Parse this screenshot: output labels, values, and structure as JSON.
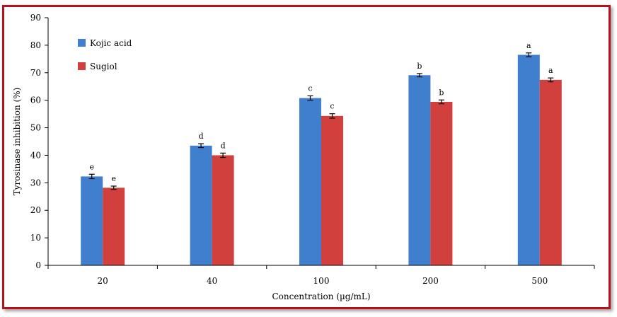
{
  "chart_data": {
    "type": "bar",
    "title": "",
    "xlabel": "Concentration (µg/mL)",
    "ylabel": "Tyrosinase inhibition (%)",
    "ylim": [
      0,
      90
    ],
    "yticks": [
      0,
      10,
      20,
      30,
      40,
      50,
      60,
      70,
      80,
      90
    ],
    "categories": [
      "20",
      "40",
      "100",
      "200",
      "500"
    ],
    "legend_position": "top-left",
    "grid": false,
    "series": [
      {
        "name": "Kojic acid",
        "color": "#3f7fce",
        "values": [
          32.3,
          43.5,
          60.8,
          69.1,
          76.5
        ],
        "errors": [
          0.8,
          0.7,
          0.8,
          0.6,
          0.7
        ],
        "labels": [
          "e",
          "d",
          "c",
          "b",
          "a"
        ]
      },
      {
        "name": "Sugiol",
        "color": "#d1403c",
        "values": [
          28.2,
          40.0,
          54.3,
          59.4,
          67.4
        ],
        "errors": [
          0.6,
          0.8,
          0.8,
          0.7,
          0.7
        ],
        "labels": [
          "e",
          "d",
          "c",
          "b",
          "a"
        ]
      }
    ]
  }
}
